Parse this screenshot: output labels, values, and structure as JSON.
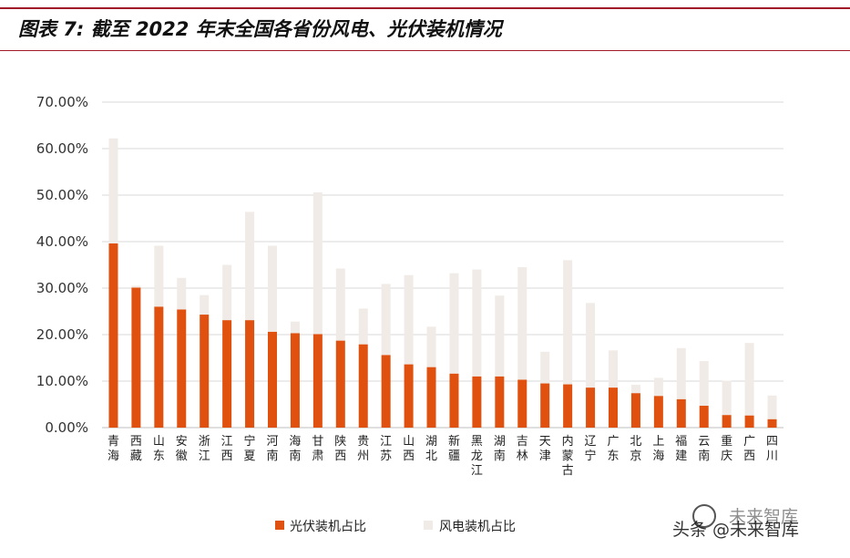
{
  "title": "图表 7: 截至 2022 年末全国各省份风电、光伏装机情况",
  "watermark": {
    "line1": "未来智库",
    "line2": "头条 @未来智库"
  },
  "colors": {
    "pv": "#e0500e",
    "wind": "#f0ebe6",
    "grid": "#d9d9d9",
    "frame": "#a01a2a"
  },
  "chart_data": {
    "type": "bar",
    "stacked": true,
    "categories": [
      "青海",
      "西藏",
      "山东",
      "安徽",
      "浙江",
      "江西",
      "宁夏",
      "河南",
      "海南",
      "甘肃",
      "陕西",
      "贵州",
      "江苏",
      "山西",
      "湖北",
      "新疆",
      "黑龙江",
      "湖南",
      "吉林",
      "天津",
      "内蒙古",
      "辽宁",
      "广东",
      "北京",
      "上海",
      "福建",
      "云南",
      "重庆",
      "广西",
      "四川"
    ],
    "series": [
      {
        "name": "光伏装机占比",
        "values": [
          39.6,
          30.1,
          26.0,
          25.4,
          24.3,
          23.1,
          23.1,
          20.6,
          20.3,
          20.1,
          18.7,
          17.9,
          15.6,
          13.6,
          13.0,
          11.6,
          11.0,
          11.0,
          10.3,
          9.5,
          9.3,
          8.6,
          8.6,
          7.4,
          6.8,
          6.1,
          4.7,
          2.7,
          2.6,
          1.8
        ]
      },
      {
        "name": "风电装机占比",
        "values": [
          22.6,
          0.4,
          13.1,
          6.8,
          4.2,
          11.9,
          23.3,
          18.5,
          2.5,
          30.5,
          15.5,
          7.7,
          15.3,
          19.2,
          8.7,
          21.6,
          23.0,
          17.4,
          24.2,
          6.8,
          26.7,
          18.2,
          8.0,
          1.8,
          3.9,
          11.0,
          9.6,
          7.4,
          15.6,
          5.1
        ]
      }
    ],
    "yticks": [
      "0.00%",
      "10.00%",
      "20.00%",
      "30.00%",
      "40.00%",
      "50.00%",
      "60.00%",
      "70.00%"
    ],
    "ylim": [
      0,
      70
    ],
    "grid": true,
    "legend_position": "bottom"
  }
}
